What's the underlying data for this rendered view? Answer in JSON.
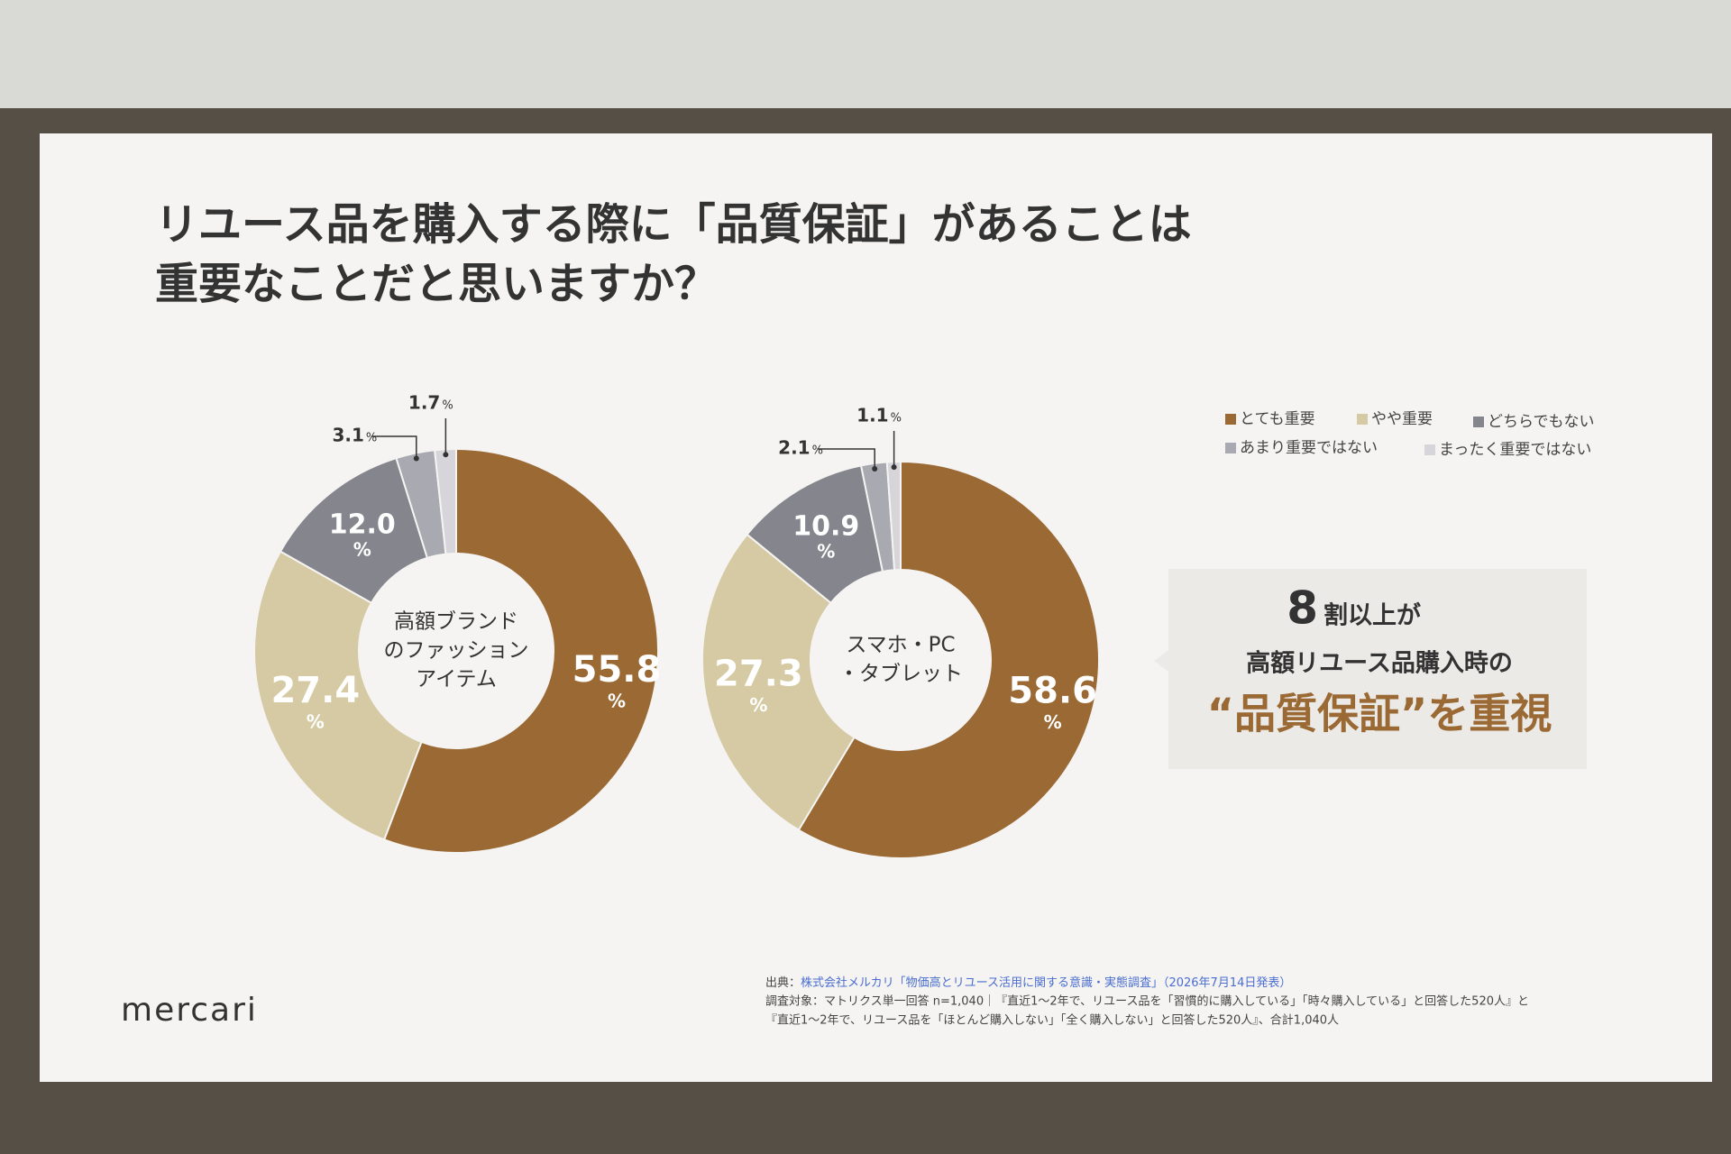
{
  "slide": {
    "title_lines": [
      "リユース品を購入する際に「品質保証」があることは",
      "重要なことだと思いますか？"
    ],
    "callout": {
      "number": "8",
      "line1": "割以上が",
      "line2": "高額リユース品購入時の",
      "line3": "“品質保証”を重視"
    },
    "source_label": "出典：",
    "source_link": "株式会社メルカリ「物価高とリユース活用に関する意識・実態調査」（2026年7月14日発表）",
    "source_lines": [
      "調査対象：マトリクス単一回答 n=1,040｜『直近1〜2年で、リユース品を「習慣的に購入している」「時々購入している」と回答した520人』と",
      "『直近1〜2年で、リユース品を「ほとんど購入しない」「全く購入しない」と回答した520人』、合計1,040人"
    ],
    "logo": "mercari"
  },
  "chart_data": [
    {
      "type": "pie",
      "center_label": [
        "高額ブランド",
        "のファッション",
        "アイテム"
      ],
      "categories": [
        "とても重要",
        "やや重要",
        "どちらでもない",
        "あまり重要ではない",
        "まったく重要ではない"
      ],
      "colors": [
        "#9a6934",
        "#d5caa3",
        "#85868d",
        "#a8a9b1",
        "#d6d6da"
      ],
      "values": [
        55.8,
        27.4,
        12.0,
        3.1,
        1.7
      ],
      "value_labels": [
        "55.8",
        "27.4",
        "12.0",
        "3.1",
        "1.7"
      ],
      "unit": "%"
    },
    {
      "type": "pie",
      "center_label": [
        "スマホ・PC",
        "・タブレット"
      ],
      "values": [
        58.6,
        27.3,
        10.9,
        2.1,
        1.1
      ],
      "unit": "%"
    }
  ]
}
